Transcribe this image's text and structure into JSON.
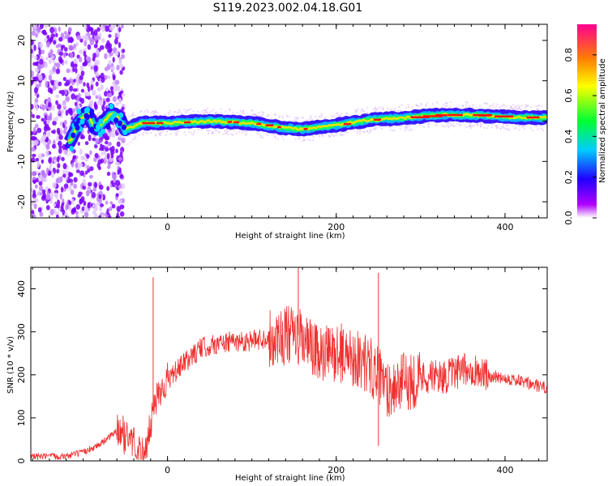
{
  "title": "S119.2023.002.04.18.G01",
  "chart_data": [
    {
      "type": "heatmap",
      "xlabel": "Height of straight line (km)",
      "ylabel": "Frequency (Hz)",
      "xlim": [
        -162,
        450
      ],
      "ylim": [
        -24,
        24
      ],
      "xticks": [
        0,
        200,
        400
      ],
      "yticks": [
        -20,
        -10,
        0,
        10,
        20
      ],
      "colorbar": {
        "label": "Normalized spectral amplitude",
        "range": [
          0,
          0.95
        ],
        "ticks": [
          0.0,
          0.2,
          0.4,
          0.6,
          0.8
        ]
      },
      "ridge_frequency": {
        "x": [
          -115,
          -105,
          -95,
          -85,
          -75,
          -65,
          -58,
          -50,
          -30,
          0,
          50,
          100,
          130,
          160,
          200,
          240,
          280,
          320,
          360,
          400,
          450
        ],
        "y": [
          -5,
          0,
          2,
          -2,
          0,
          2,
          1,
          -2,
          -0.5,
          -0.5,
          0,
          -0.5,
          -1.5,
          -2,
          -1,
          0.3,
          0.8,
          1.5,
          1.5,
          1,
          0.8
        ]
      }
    },
    {
      "type": "line",
      "xlabel": "Height of straight line (km)",
      "ylabel": "SNR (10 * v/v)",
      "xlim": [
        -162,
        450
      ],
      "ylim": [
        0,
        450
      ],
      "xticks": [
        0,
        200,
        400
      ],
      "yticks": [
        0,
        100,
        200,
        300,
        400
      ],
      "color": "#f03030",
      "envelope": {
        "x": [
          -162,
          -120,
          -100,
          -80,
          -60,
          -45,
          -35,
          -25,
          -18,
          -10,
          0,
          20,
          40,
          60,
          80,
          100,
          120,
          140,
          160,
          180,
          200,
          220,
          240,
          260,
          280,
          300,
          330,
          360,
          380,
          400,
          420,
          450
        ],
        "y": [
          10,
          12,
          20,
          40,
          70,
          60,
          30,
          15,
          120,
          170,
          190,
          230,
          265,
          275,
          280,
          282,
          290,
          300,
          290,
          250,
          260,
          250,
          230,
          175,
          190,
          200,
          200,
          220,
          200,
          195,
          185,
          170
        ]
      },
      "spikes": [
        {
          "x": -17,
          "y": 427
        },
        {
          "x": 155,
          "y": 450
        },
        {
          "x": 250,
          "y": 437
        },
        {
          "x": 250,
          "y": 35
        }
      ]
    }
  ]
}
